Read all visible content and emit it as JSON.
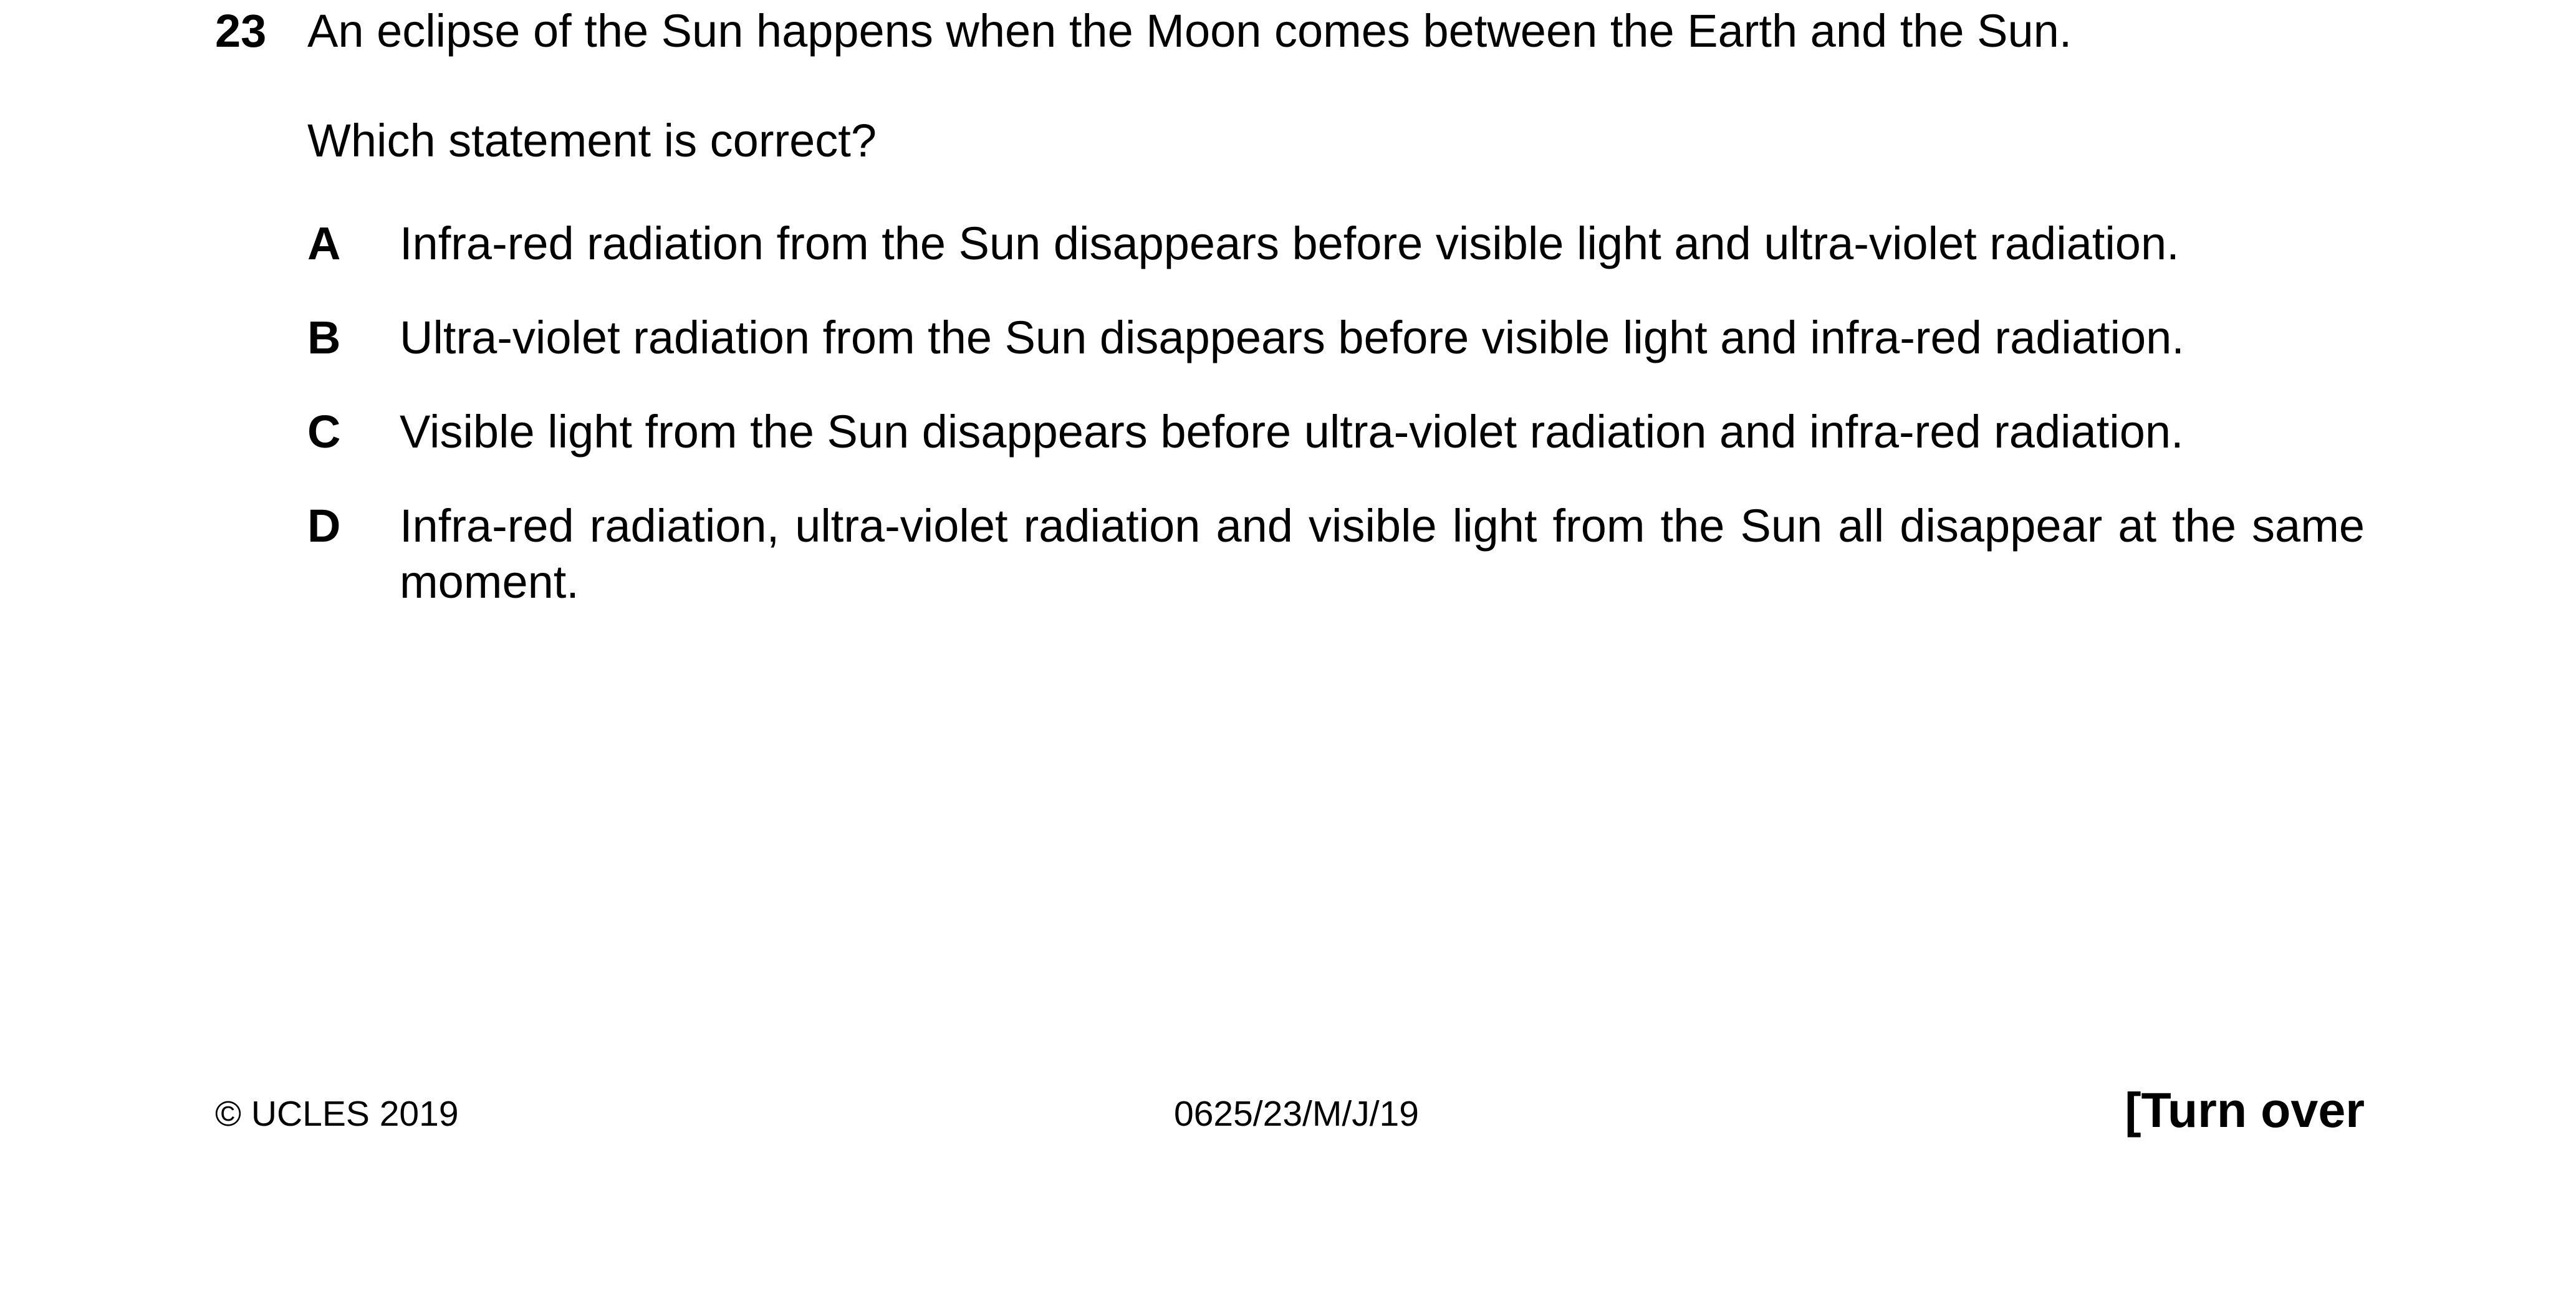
{
  "question": {
    "number": "23",
    "stem": "An eclipse of the Sun happens when the Moon comes between the Earth and the Sun.",
    "prompt": "Which statement is correct?",
    "options": [
      {
        "letter": "A",
        "text": "Infra-red radiation from the Sun disappears before visible light and ultra-violet radiation."
      },
      {
        "letter": "B",
        "text": "Ultra-violet radiation from the Sun disappears before visible light and infra-red radiation."
      },
      {
        "letter": "C",
        "text": "Visible light from the Sun disappears before ultra-violet radiation and infra-red radiation."
      },
      {
        "letter": "D",
        "text": "Infra-red radiation, ultra-violet radiation and visible light from the Sun all disappear at the same moment."
      }
    ]
  },
  "footer": {
    "copyright": "© UCLES 2019",
    "paper_code": "0625/23/M/J/19",
    "turn_over": "[Turn over"
  }
}
